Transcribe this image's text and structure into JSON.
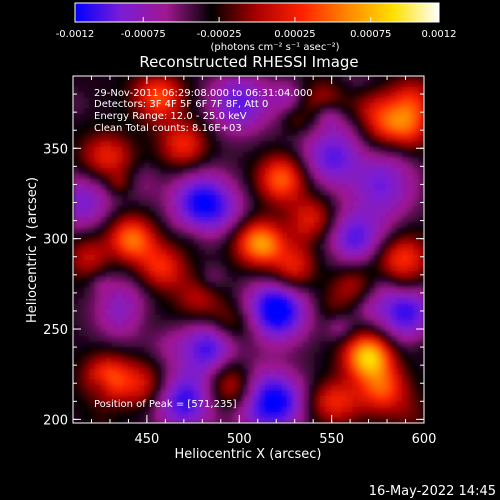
{
  "chart_data": {
    "type": "heatmap",
    "title": "Reconstructed RHESSI Image",
    "xlabel": "Heliocentric X (arcsec)",
    "ylabel": "Heliocentric Y (arcsec)",
    "xlim": [
      410,
      600
    ],
    "ylim": [
      198,
      390
    ],
    "x_ticks": [
      {
        "value": 450,
        "label": "450"
      },
      {
        "value": 500,
        "label": "500"
      },
      {
        "value": 550,
        "label": "550"
      },
      {
        "value": 600,
        "label": "600"
      }
    ],
    "y_ticks": [
      {
        "value": 200,
        "label": "200"
      },
      {
        "value": 250,
        "label": "250"
      },
      {
        "value": 300,
        "label": "300"
      },
      {
        "value": 350,
        "label": "350"
      }
    ],
    "colorbar": {
      "range": [
        -0.0012,
        0.0012
      ],
      "ticks": [
        {
          "value": -0.0012,
          "label": "-0.0012"
        },
        {
          "value": -0.00075,
          "label": "-0.00075"
        },
        {
          "value": -0.00025,
          "label": "-0.00025"
        },
        {
          "value": 0.00025,
          "label": "0.00025"
        },
        {
          "value": 0.00075,
          "label": "0.00075"
        },
        {
          "value": 0.0012,
          "label": "0.0012"
        }
      ],
      "units": "(photons cm⁻² s⁻¹ asec⁻²)",
      "stops": [
        "#0000ff",
        "#7a1cd6",
        "#a01890",
        "#000000",
        "#aa0000",
        "#ff2200",
        "#ff8800",
        "#ffe000",
        "#ffffff"
      ]
    },
    "annotations": {
      "time": "29-Nov-2011 06:29:08.000 to 06:31:04.000",
      "detectors": "Detectors: 3F 4F 5F 6F 7F 8F, Att 0",
      "energy": "Energy Range: 12.0 - 25.0 keV",
      "clean": "Clean     Total counts: 8.16E+03",
      "peak": "Position of Peak = [571,235]"
    },
    "peak_position": [
      571,
      235
    ],
    "bright_sources": [
      {
        "x": 441,
        "y": 299,
        "intensity": 0.00095
      },
      {
        "x": 570,
        "y": 235,
        "intensity": 0.0012
      },
      {
        "x": 510,
        "y": 298,
        "intensity": 0.0009
      },
      {
        "x": 523,
        "y": 333,
        "intensity": 0.0008
      },
      {
        "x": 531,
        "y": 283,
        "intensity": 0.00075
      },
      {
        "x": 540,
        "y": 310,
        "intensity": 0.0006
      },
      {
        "x": 458,
        "y": 284,
        "intensity": 0.0006
      },
      {
        "x": 420,
        "y": 290,
        "intensity": 0.0005
      },
      {
        "x": 578,
        "y": 216,
        "intensity": 0.0007
      },
      {
        "x": 553,
        "y": 209,
        "intensity": 0.0006
      },
      {
        "x": 590,
        "y": 360,
        "intensity": 0.0006
      },
      {
        "x": 594,
        "y": 376,
        "intensity": 0.0005
      },
      {
        "x": 457,
        "y": 378,
        "intensity": 0.0007
      },
      {
        "x": 470,
        "y": 352,
        "intensity": 0.0006
      },
      {
        "x": 430,
        "y": 345,
        "intensity": 0.0005
      },
      {
        "x": 429,
        "y": 223,
        "intensity": 0.0007
      },
      {
        "x": 448,
        "y": 219,
        "intensity": 0.0005
      },
      {
        "x": 496,
        "y": 218,
        "intensity": 0.0006
      },
      {
        "x": 478,
        "y": 266,
        "intensity": 0.0004
      },
      {
        "x": 560,
        "y": 276,
        "intensity": 0.0005
      },
      {
        "x": 590,
        "y": 290,
        "intensity": 0.0005
      },
      {
        "x": 500,
        "y": 250,
        "intensity": 0.0003
      },
      {
        "x": 545,
        "y": 375,
        "intensity": 0.0005
      }
    ],
    "dim_regions": [
      {
        "x": 520,
        "y": 260,
        "intensity": -0.0009
      },
      {
        "x": 485,
        "y": 240,
        "intensity": -0.0007
      },
      {
        "x": 480,
        "y": 320,
        "intensity": -0.0008
      },
      {
        "x": 470,
        "y": 210,
        "intensity": -0.0007
      },
      {
        "x": 560,
        "y": 300,
        "intensity": -0.0007
      },
      {
        "x": 520,
        "y": 210,
        "intensity": -0.0008
      },
      {
        "x": 580,
        "y": 330,
        "intensity": -0.0006
      },
      {
        "x": 550,
        "y": 345,
        "intensity": -0.0006
      },
      {
        "x": 440,
        "y": 260,
        "intensity": -0.0006
      },
      {
        "x": 415,
        "y": 320,
        "intensity": -0.0005
      },
      {
        "x": 500,
        "y": 375,
        "intensity": -0.0006
      },
      {
        "x": 590,
        "y": 260,
        "intensity": -0.0007
      }
    ]
  },
  "footer": {
    "timestamp": "16-May-2022 14:45"
  }
}
